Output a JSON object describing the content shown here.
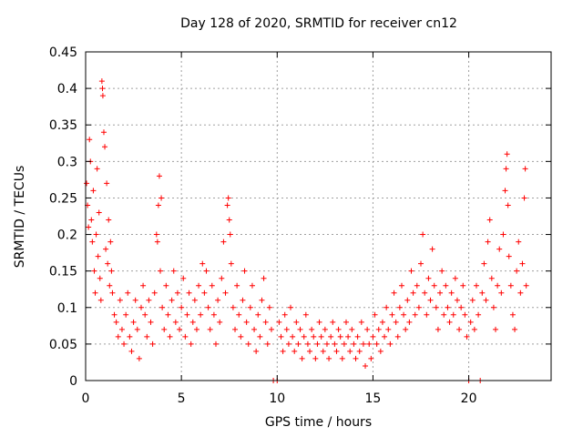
{
  "chart_data": {
    "type": "scatter",
    "title": "Day 128 of 2020, SRMTID for receiver cn12",
    "xlabel": "GPS time / hours",
    "ylabel": "SRMTID / TECUs",
    "xlim": [
      0,
      24.3
    ],
    "ylim": [
      0,
      0.45
    ],
    "xticks": [
      0,
      5,
      10,
      15,
      20
    ],
    "yticks": [
      0,
      0.05,
      0.1,
      0.15,
      0.2,
      0.25,
      0.3,
      0.35,
      0.4,
      0.45
    ],
    "xtick_labels": [
      "0",
      "5",
      "10",
      "15",
      "20"
    ],
    "ytick_labels": [
      "0",
      "0.05",
      "0.1",
      "0.15",
      "0.2",
      "0.25",
      "0.3",
      "0.35",
      "0.4",
      "0.45"
    ],
    "grid": true,
    "marker": "+",
    "color": "#ff0000",
    "series": [
      {
        "name": "SRMTID",
        "points": [
          [
            0.05,
            0.27
          ],
          [
            0.1,
            0.24
          ],
          [
            0.15,
            0.21
          ],
          [
            0.2,
            0.33
          ],
          [
            0.25,
            0.3
          ],
          [
            0.3,
            0.22
          ],
          [
            0.35,
            0.19
          ],
          [
            0.4,
            0.26
          ],
          [
            0.45,
            0.15
          ],
          [
            0.5,
            0.12
          ],
          [
            0.55,
            0.2
          ],
          [
            0.6,
            0.29
          ],
          [
            0.65,
            0.17
          ],
          [
            0.7,
            0.23
          ],
          [
            0.75,
            0.14
          ],
          [
            0.8,
            0.11
          ],
          [
            0.85,
            0.41
          ],
          [
            0.88,
            0.4
          ],
          [
            0.9,
            0.39
          ],
          [
            0.95,
            0.34
          ],
          [
            1.0,
            0.32
          ],
          [
            1.05,
            0.18
          ],
          [
            1.1,
            0.27
          ],
          [
            1.15,
            0.16
          ],
          [
            1.2,
            0.22
          ],
          [
            1.25,
            0.13
          ],
          [
            1.3,
            0.19
          ],
          [
            1.35,
            0.15
          ],
          [
            1.4,
            0.12
          ],
          [
            1.5,
            0.09
          ],
          [
            1.6,
            0.08
          ],
          [
            1.7,
            0.06
          ],
          [
            1.8,
            0.11
          ],
          [
            1.9,
            0.07
          ],
          [
            2.0,
            0.05
          ],
          [
            2.1,
            0.09
          ],
          [
            2.2,
            0.12
          ],
          [
            2.3,
            0.06
          ],
          [
            2.4,
            0.04
          ],
          [
            2.5,
            0.08
          ],
          [
            2.6,
            0.11
          ],
          [
            2.7,
            0.07
          ],
          [
            2.8,
            0.03
          ],
          [
            2.9,
            0.1
          ],
          [
            3.0,
            0.13
          ],
          [
            3.1,
            0.09
          ],
          [
            3.2,
            0.06
          ],
          [
            3.3,
            0.11
          ],
          [
            3.4,
            0.08
          ],
          [
            3.5,
            0.05
          ],
          [
            3.6,
            0.12
          ],
          [
            3.7,
            0.2
          ],
          [
            3.75,
            0.19
          ],
          [
            3.8,
            0.24
          ],
          [
            3.85,
            0.28
          ],
          [
            3.9,
            0.15
          ],
          [
            3.95,
            0.25
          ],
          [
            4.0,
            0.1
          ],
          [
            4.1,
            0.07
          ],
          [
            4.2,
            0.13
          ],
          [
            4.3,
            0.09
          ],
          [
            4.4,
            0.06
          ],
          [
            4.5,
            0.11
          ],
          [
            4.6,
            0.15
          ],
          [
            4.7,
            0.08
          ],
          [
            4.8,
            0.12
          ],
          [
            4.9,
            0.07
          ],
          [
            5.0,
            0.1
          ],
          [
            5.1,
            0.14
          ],
          [
            5.2,
            0.06
          ],
          [
            5.3,
            0.09
          ],
          [
            5.4,
            0.12
          ],
          [
            5.5,
            0.05
          ],
          [
            5.6,
            0.08
          ],
          [
            5.7,
            0.11
          ],
          [
            5.8,
            0.07
          ],
          [
            5.9,
            0.13
          ],
          [
            6.0,
            0.09
          ],
          [
            6.1,
            0.16
          ],
          [
            6.2,
            0.12
          ],
          [
            6.3,
            0.15
          ],
          [
            6.4,
            0.1
          ],
          [
            6.5,
            0.07
          ],
          [
            6.6,
            0.13
          ],
          [
            6.7,
            0.09
          ],
          [
            6.8,
            0.05
          ],
          [
            6.9,
            0.11
          ],
          [
            7.0,
            0.08
          ],
          [
            7.1,
            0.14
          ],
          [
            7.2,
            0.19
          ],
          [
            7.3,
            0.12
          ],
          [
            7.4,
            0.24
          ],
          [
            7.45,
            0.25
          ],
          [
            7.5,
            0.22
          ],
          [
            7.55,
            0.2
          ],
          [
            7.6,
            0.16
          ],
          [
            7.7,
            0.1
          ],
          [
            7.8,
            0.07
          ],
          [
            7.9,
            0.13
          ],
          [
            8.0,
            0.09
          ],
          [
            8.1,
            0.06
          ],
          [
            8.2,
            0.11
          ],
          [
            8.3,
            0.15
          ],
          [
            8.4,
            0.08
          ],
          [
            8.5,
            0.05
          ],
          [
            8.6,
            0.1
          ],
          [
            8.7,
            0.13
          ],
          [
            8.8,
            0.07
          ],
          [
            8.9,
            0.04
          ],
          [
            9.0,
            0.09
          ],
          [
            9.1,
            0.06
          ],
          [
            9.2,
            0.11
          ],
          [
            9.3,
            0.14
          ],
          [
            9.4,
            0.08
          ],
          [
            9.5,
            0.05
          ],
          [
            9.6,
            0.1
          ],
          [
            9.7,
            0.07
          ],
          [
            9.8,
            0.0
          ],
          [
            10.0,
            0.0
          ],
          [
            10.1,
            0.08
          ],
          [
            10.2,
            0.06
          ],
          [
            10.3,
            0.04
          ],
          [
            10.4,
            0.09
          ],
          [
            10.5,
            0.07
          ],
          [
            10.6,
            0.05
          ],
          [
            10.7,
            0.1
          ],
          [
            10.8,
            0.06
          ],
          [
            10.9,
            0.04
          ],
          [
            11.0,
            0.08
          ],
          [
            11.1,
            0.05
          ],
          [
            11.2,
            0.07
          ],
          [
            11.3,
            0.03
          ],
          [
            11.4,
            0.06
          ],
          [
            11.5,
            0.09
          ],
          [
            11.6,
            0.05
          ],
          [
            11.7,
            0.04
          ],
          [
            11.8,
            0.07
          ],
          [
            11.9,
            0.06
          ],
          [
            12.0,
            0.03
          ],
          [
            12.1,
            0.05
          ],
          [
            12.2,
            0.08
          ],
          [
            12.3,
            0.06
          ],
          [
            12.4,
            0.04
          ],
          [
            12.5,
            0.07
          ],
          [
            12.6,
            0.05
          ],
          [
            12.7,
            0.03
          ],
          [
            12.8,
            0.06
          ],
          [
            12.9,
            0.08
          ],
          [
            13.0,
            0.05
          ],
          [
            13.1,
            0.04
          ],
          [
            13.2,
            0.07
          ],
          [
            13.3,
            0.06
          ],
          [
            13.4,
            0.03
          ],
          [
            13.5,
            0.05
          ],
          [
            13.6,
            0.08
          ],
          [
            13.7,
            0.06
          ],
          [
            13.8,
            0.04
          ],
          [
            13.9,
            0.07
          ],
          [
            14.0,
            0.05
          ],
          [
            14.1,
            0.03
          ],
          [
            14.2,
            0.06
          ],
          [
            14.3,
            0.04
          ],
          [
            14.4,
            0.08
          ],
          [
            14.5,
            0.05
          ],
          [
            14.6,
            0.02
          ],
          [
            14.7,
            0.07
          ],
          [
            14.8,
            0.05
          ],
          [
            14.9,
            0.03
          ],
          [
            15.0,
            0.06
          ],
          [
            15.1,
            0.09
          ],
          [
            15.2,
            0.05
          ],
          [
            15.3,
            0.07
          ],
          [
            15.4,
            0.04
          ],
          [
            15.5,
            0.08
          ],
          [
            15.6,
            0.06
          ],
          [
            15.7,
            0.1
          ],
          [
            15.8,
            0.07
          ],
          [
            15.9,
            0.05
          ],
          [
            16.0,
            0.09
          ],
          [
            16.1,
            0.12
          ],
          [
            16.2,
            0.08
          ],
          [
            16.3,
            0.06
          ],
          [
            16.4,
            0.1
          ],
          [
            16.5,
            0.13
          ],
          [
            16.6,
            0.09
          ],
          [
            16.7,
            0.07
          ],
          [
            16.8,
            0.11
          ],
          [
            16.9,
            0.08
          ],
          [
            17.0,
            0.15
          ],
          [
            17.1,
            0.12
          ],
          [
            17.2,
            0.09
          ],
          [
            17.3,
            0.13
          ],
          [
            17.4,
            0.1
          ],
          [
            17.5,
            0.16
          ],
          [
            17.6,
            0.2
          ],
          [
            17.7,
            0.12
          ],
          [
            17.8,
            0.09
          ],
          [
            17.9,
            0.14
          ],
          [
            18.0,
            0.11
          ],
          [
            18.1,
            0.18
          ],
          [
            18.2,
            0.13
          ],
          [
            18.3,
            0.1
          ],
          [
            18.4,
            0.07
          ],
          [
            18.5,
            0.12
          ],
          [
            18.6,
            0.15
          ],
          [
            18.7,
            0.09
          ],
          [
            18.8,
            0.13
          ],
          [
            18.9,
            0.1
          ],
          [
            19.0,
            0.08
          ],
          [
            19.1,
            0.12
          ],
          [
            19.2,
            0.09
          ],
          [
            19.3,
            0.14
          ],
          [
            19.4,
            0.11
          ],
          [
            19.5,
            0.07
          ],
          [
            19.6,
            0.1
          ],
          [
            19.7,
            0.13
          ],
          [
            19.8,
            0.09
          ],
          [
            19.9,
            0.06
          ],
          [
            20.0,
            0.0
          ],
          [
            20.1,
            0.08
          ],
          [
            20.2,
            0.11
          ],
          [
            20.3,
            0.07
          ],
          [
            20.4,
            0.13
          ],
          [
            20.5,
            0.09
          ],
          [
            20.6,
            0.0
          ],
          [
            20.7,
            0.12
          ],
          [
            20.8,
            0.16
          ],
          [
            20.9,
            0.11
          ],
          [
            21.0,
            0.19
          ],
          [
            21.1,
            0.22
          ],
          [
            21.2,
            0.14
          ],
          [
            21.3,
            0.1
          ],
          [
            21.4,
            0.07
          ],
          [
            21.5,
            0.13
          ],
          [
            21.6,
            0.18
          ],
          [
            21.7,
            0.12
          ],
          [
            21.8,
            0.2
          ],
          [
            21.9,
            0.26
          ],
          [
            21.95,
            0.29
          ],
          [
            22.0,
            0.31
          ],
          [
            22.05,
            0.24
          ],
          [
            22.1,
            0.17
          ],
          [
            22.2,
            0.13
          ],
          [
            22.3,
            0.09
          ],
          [
            22.4,
            0.07
          ],
          [
            22.5,
            0.15
          ],
          [
            22.6,
            0.19
          ],
          [
            22.7,
            0.12
          ],
          [
            22.8,
            0.16
          ],
          [
            22.9,
            0.25
          ],
          [
            22.95,
            0.29
          ],
          [
            23.0,
            0.13
          ]
        ]
      }
    ]
  }
}
